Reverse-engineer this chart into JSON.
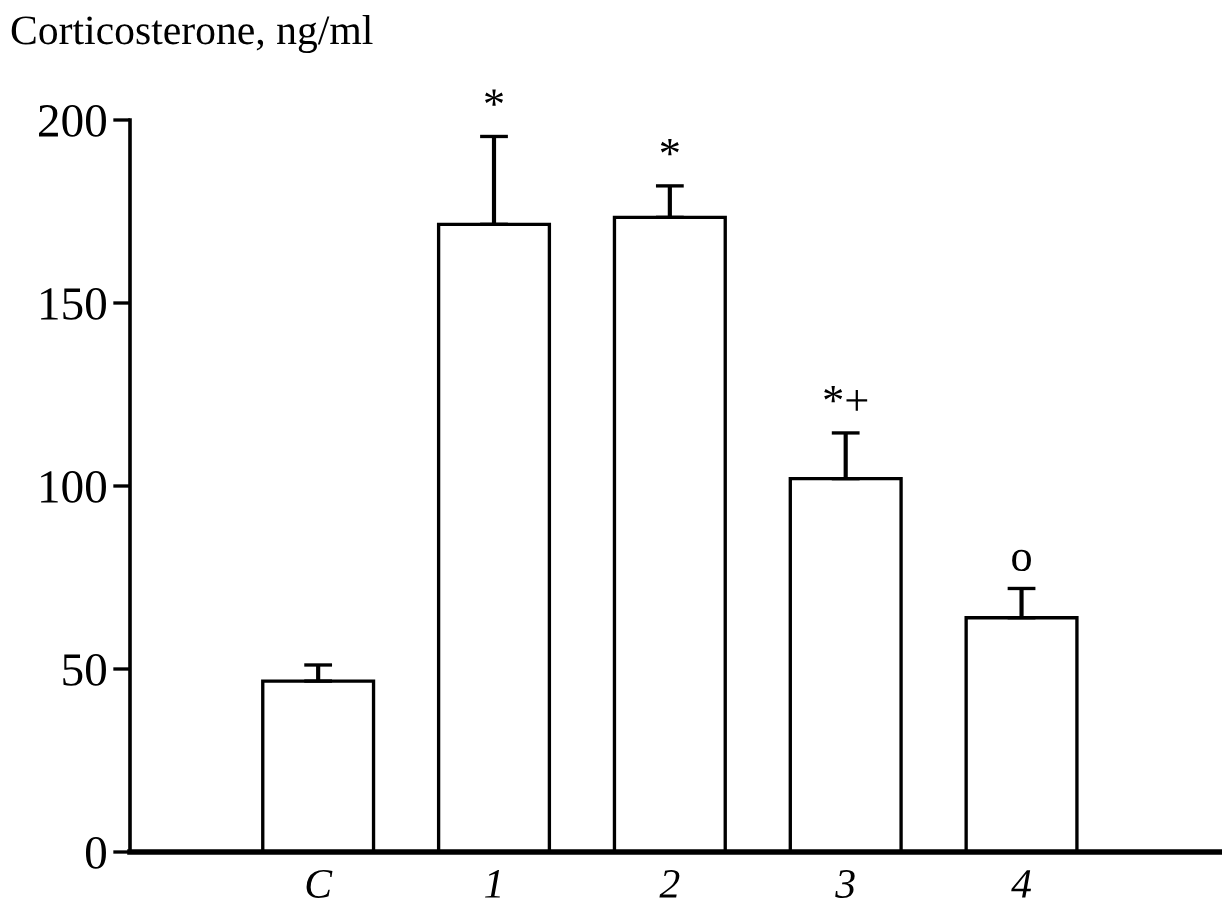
{
  "chart_data": {
    "type": "bar",
    "ylabel": "Corticosterone, ng/ml",
    "categories": [
      "C",
      "1",
      "2",
      "3",
      "4"
    ],
    "values": [
      46.7,
      171.5,
      173.4,
      102,
      64
    ],
    "errors": [
      4.4,
      24,
      8.6,
      12.5,
      8
    ],
    "color": "#ffffff",
    "ylim": [
      0,
      200
    ],
    "yticks": [
      0,
      50,
      100,
      150,
      200
    ],
    "grid": false,
    "annotations": [
      {
        "text": "*",
        "x": "1",
        "y": 195.5
      },
      {
        "text": "*",
        "x": "2",
        "y": 182
      },
      {
        "text": "*+",
        "x": "3",
        "y": 114.5
      },
      {
        "text": "o",
        "x": "4",
        "y": 72
      }
    ]
  }
}
